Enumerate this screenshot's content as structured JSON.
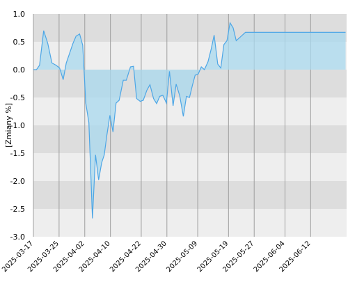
{
  "chart_data": {
    "type": "area",
    "ylabel": "[Zmiany %]",
    "ylim": [
      -3.0,
      1.0
    ],
    "y_ticks": [
      "1.0",
      "0.5",
      "0.0",
      "-0.5",
      "-1.0",
      "-1.5",
      "-2.0",
      "-2.5",
      "-3.0"
    ],
    "y_tick_values": [
      1.0,
      0.5,
      0.0,
      -0.5,
      -1.0,
      -1.5,
      -2.0,
      -2.5,
      -3.0
    ],
    "x_ticks": [
      "2025-03-17",
      "2025-03-25",
      "2025-04-02",
      "2025-04-10",
      "2025-04-22",
      "2025-04-30",
      "2025-05-09",
      "2025-05-19",
      "2025-05-27",
      "2025-06-04",
      "2025-06-12"
    ],
    "x_tick_positions": [
      0,
      5,
      10,
      15,
      21,
      26,
      32,
      38,
      43,
      49,
      54
    ],
    "x_range": [
      0,
      61
    ],
    "grid": true,
    "series": [
      {
        "x": [
          0,
          0.6,
          1.2,
          2,
          2.8,
          3.6,
          4.4,
          5.1,
          5.8,
          6.4,
          7,
          7.7,
          8.3,
          9,
          9.6,
          10.2,
          10.8,
          11.5,
          12.1,
          12.7,
          13.3,
          13.8,
          14.3,
          14.9,
          15.5,
          16.1,
          16.7,
          17.5,
          18.1,
          18.9,
          19.5,
          20.1,
          20.8,
          21.4,
          22.1,
          22.7,
          23.4,
          24,
          24.6,
          25.2,
          25.9,
          26.5,
          27.2,
          27.8,
          28.5,
          29.2,
          29.8,
          30.4,
          31,
          31.5,
          32.1,
          32.7,
          33.3,
          34,
          34.6,
          35.2,
          35.9,
          36.5,
          37.1,
          37.7,
          38.3,
          38.9,
          39.5,
          40.1,
          40.7,
          41.3,
          41.9,
          42.5,
          43.1,
          43.7,
          44.4,
          45,
          45.6,
          46.2,
          46.8,
          47.4,
          48.1,
          48.7,
          49.3,
          49.9,
          50.5,
          51.1,
          51.7,
          52.3,
          52.9,
          53.5,
          54.1,
          54.8,
          55.4,
          56.1,
          56.8,
          57.5,
          58.1,
          58.8,
          59.5,
          60.1,
          60.8
        ],
        "values": [
          0,
          0,
          0.08,
          0.7,
          0.47,
          0.12,
          0.08,
          0.03,
          -0.18,
          0.12,
          0.28,
          0.47,
          0.6,
          0.64,
          0.44,
          -0.6,
          -0.95,
          -2.67,
          -1.53,
          -1.98,
          -1.67,
          -1.53,
          -1.18,
          -0.82,
          -1.12,
          -0.6,
          -0.55,
          -0.19,
          -0.19,
          0.05,
          0.06,
          -0.52,
          -0.57,
          -0.55,
          -0.37,
          -0.27,
          -0.52,
          -0.61,
          -0.48,
          -0.46,
          -0.6,
          -0.03,
          -0.65,
          -0.26,
          -0.47,
          -0.84,
          -0.48,
          -0.5,
          -0.27,
          -0.1,
          -0.08,
          0.05,
          0.0,
          0.14,
          0.36,
          0.62,
          0.1,
          0.03,
          0.45,
          0.52,
          0.84,
          0.75,
          0.52,
          0.57,
          0.62,
          0.67,
          0.67,
          0.67,
          0.67,
          0.67,
          0.67,
          0.67,
          0.67,
          0.67,
          0.67,
          0.67,
          0.67,
          0.67,
          0.67,
          0.67,
          0.67,
          0.67,
          0.67,
          0.67,
          0.67,
          0.67,
          0.67,
          0.67,
          0.67,
          0.67,
          0.67,
          0.67,
          0.67,
          0.67,
          0.67,
          0.67,
          0.67
        ]
      }
    ],
    "colors": {
      "line": "#4da6e6",
      "fill": "#a8d8ee",
      "band_light": "#eeeeee",
      "band_dark": "#dddddd",
      "vgrid": "#9e9e9e"
    }
  }
}
